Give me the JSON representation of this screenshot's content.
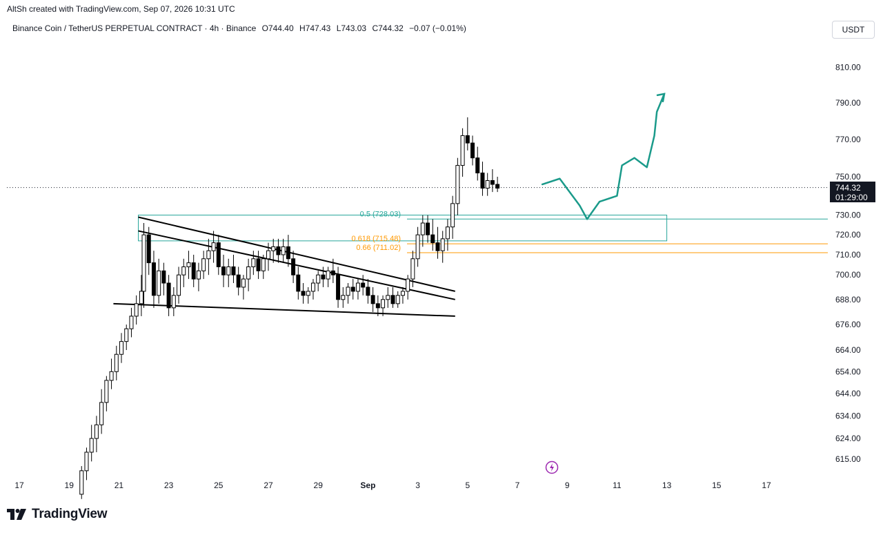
{
  "attribution": "AltSh created with TradingView.com, Sep 07, 2026 10:31 UTC",
  "header": {
    "symbol": "Binance Coin / TetherUS PERPETUAL CONTRACT · 4h · Binance",
    "open": "O744.40",
    "high": "H747.43",
    "low": "L743.03",
    "close": "C744.32",
    "change": "−0.07 (−0.01%)"
  },
  "currency_button": "USDT",
  "price_tag": {
    "price": "744.32",
    "countdown": "01:29:00"
  },
  "logo_text": "TradingView",
  "icons": {
    "logo": "tradingview-logo-icon",
    "flash": "lightning-icon"
  },
  "colors": {
    "up": "#ffffff",
    "down": "#000000",
    "green": "#26a69a",
    "orange": "#ff9800",
    "projection": "#1a9a8a",
    "text": "#131722"
  },
  "chart_data": {
    "type": "candlestick",
    "y_axis": {
      "ticks": [
        615,
        624,
        634,
        644,
        654,
        664,
        676,
        688,
        700,
        710,
        720,
        730,
        750,
        770,
        790,
        810
      ],
      "tick_labels": [
        "615.00",
        "624.00",
        "634.00",
        "644.00",
        "654.00",
        "664.00",
        "676.00",
        "688.00",
        "700.00",
        "710.00",
        "720.00",
        "730.00",
        "750.00",
        "770.00",
        "790.00",
        "810.00"
      ],
      "scale": "log"
    },
    "x_axis": {
      "tick_labels": [
        "17",
        "19",
        "21",
        "23",
        "25",
        "27",
        "29",
        "Sep",
        "3",
        "5",
        "7",
        "9",
        "11",
        "13",
        "15",
        "17"
      ]
    },
    "current_price": 744.32,
    "fib_levels": [
      {
        "label": "0.5 (728.03)",
        "value": 728.03,
        "color": "#26a69a"
      },
      {
        "label": "0.618 (715.48)",
        "value": 715.48,
        "color": "#ff9800"
      },
      {
        "label": "0.66 (711.02)",
        "value": 711.02,
        "color": "#ff9800"
      }
    ],
    "zone": {
      "high": 729,
      "low": 718,
      "start": "Aug 22",
      "end": "Sep 12"
    },
    "trendlines": [
      {
        "from": [
          "Aug 22",
          729
        ],
        "to": [
          "Sep 3.5",
          692
        ]
      },
      {
        "from": [
          "Aug 22",
          722
        ],
        "to": [
          "Sep 3.5",
          688
        ]
      },
      {
        "from": [
          "Aug 21",
          686
        ],
        "to": [
          "Sep 3.5",
          680
        ]
      }
    ],
    "projection": [
      [
        "Sep 7",
        746
      ],
      [
        "Sep 7.7",
        749
      ],
      [
        "Sep 8.5",
        735
      ],
      [
        "Sep 8.8",
        728
      ],
      [
        "Sep 9.3",
        737
      ],
      [
        "Sep 10",
        740
      ],
      [
        "Sep 10.2",
        756
      ],
      [
        "Sep 10.7",
        760
      ],
      [
        "Sep 11.2",
        755
      ],
      [
        "Sep 11.5",
        772
      ],
      [
        "Sep 11.6",
        785
      ],
      [
        "Sep 11.9",
        795
      ]
    ],
    "candles": [
      [
        19.5,
        600,
        612,
        598,
        610
      ],
      [
        19.7,
        610,
        620,
        606,
        618
      ],
      [
        19.9,
        618,
        630,
        614,
        624
      ],
      [
        20.1,
        624,
        634,
        618,
        630
      ],
      [
        20.3,
        630,
        646,
        626,
        640
      ],
      [
        20.5,
        640,
        652,
        636,
        650
      ],
      [
        20.7,
        650,
        660,
        646,
        654
      ],
      [
        20.9,
        654,
        666,
        650,
        662
      ],
      [
        21.1,
        662,
        672,
        658,
        668
      ],
      [
        21.3,
        668,
        676,
        664,
        674
      ],
      [
        21.5,
        674,
        684,
        670,
        680
      ],
      [
        21.7,
        680,
        690,
        676,
        686
      ],
      [
        21.9,
        686,
        700,
        680,
        692
      ],
      [
        22.0,
        692,
        726,
        684,
        720
      ],
      [
        22.2,
        720,
        724,
        700,
        706
      ],
      [
        22.4,
        706,
        712,
        684,
        690
      ],
      [
        22.6,
        690,
        708,
        686,
        702
      ],
      [
        22.8,
        702,
        706,
        690,
        696
      ],
      [
        23.0,
        696,
        700,
        680,
        684
      ],
      [
        23.2,
        684,
        694,
        680,
        690
      ],
      [
        23.4,
        690,
        704,
        686,
        700
      ],
      [
        23.6,
        700,
        708,
        694,
        704
      ],
      [
        23.8,
        704,
        712,
        698,
        706
      ],
      [
        24.0,
        706,
        710,
        694,
        698
      ],
      [
        24.2,
        698,
        706,
        692,
        702
      ],
      [
        24.4,
        702,
        712,
        698,
        708
      ],
      [
        24.6,
        708,
        718,
        700,
        712
      ],
      [
        24.8,
        712,
        722,
        706,
        716
      ],
      [
        25.0,
        716,
        720,
        700,
        704
      ],
      [
        25.2,
        704,
        710,
        694,
        700
      ],
      [
        25.4,
        700,
        708,
        694,
        704
      ],
      [
        25.6,
        704,
        710,
        696,
        700
      ],
      [
        25.8,
        700,
        704,
        690,
        694
      ],
      [
        26.0,
        694,
        700,
        688,
        698
      ],
      [
        26.2,
        698,
        708,
        692,
        704
      ],
      [
        26.4,
        704,
        712,
        700,
        708
      ],
      [
        26.6,
        708,
        712,
        698,
        702
      ],
      [
        26.8,
        702,
        710,
        698,
        708
      ],
      [
        27.0,
        708,
        716,
        702,
        712
      ],
      [
        27.2,
        712,
        718,
        706,
        714
      ],
      [
        27.4,
        714,
        718,
        706,
        710
      ],
      [
        27.6,
        710,
        718,
        706,
        714
      ],
      [
        27.8,
        714,
        720,
        704,
        708
      ],
      [
        28.0,
        708,
        712,
        696,
        700
      ],
      [
        28.2,
        700,
        704,
        688,
        692
      ],
      [
        28.4,
        692,
        696,
        686,
        690
      ],
      [
        28.6,
        690,
        694,
        686,
        692
      ],
      [
        28.8,
        692,
        698,
        688,
        696
      ],
      [
        29.0,
        696,
        702,
        692,
        700
      ],
      [
        29.2,
        700,
        704,
        694,
        698
      ],
      [
        29.4,
        698,
        704,
        694,
        702
      ],
      [
        29.6,
        702,
        708,
        696,
        700
      ],
      [
        29.8,
        700,
        704,
        684,
        688
      ],
      [
        30.0,
        688,
        694,
        684,
        690
      ],
      [
        30.2,
        690,
        696,
        686,
        694
      ],
      [
        30.4,
        694,
        698,
        688,
        692
      ],
      [
        30.6,
        692,
        698,
        688,
        696
      ],
      [
        30.8,
        696,
        700,
        690,
        694
      ],
      [
        31.0,
        694,
        698,
        686,
        690
      ],
      [
        31.2,
        690,
        694,
        682,
        686
      ],
      [
        31.4,
        686,
        690,
        680,
        684
      ],
      [
        31.6,
        684,
        690,
        680,
        688
      ],
      [
        31.8,
        688,
        694,
        684,
        690
      ],
      [
        32.0,
        690,
        694,
        684,
        686
      ],
      [
        32.2,
        686,
        692,
        684,
        690
      ],
      [
        32.4,
        690,
        694,
        686,
        692
      ],
      [
        32.6,
        692,
        700,
        688,
        698
      ],
      [
        32.8,
        698,
        712,
        694,
        708
      ],
      [
        33.0,
        708,
        724,
        704,
        720
      ],
      [
        33.2,
        720,
        730,
        714,
        726
      ],
      [
        33.4,
        726,
        730,
        716,
        720
      ],
      [
        33.6,
        720,
        728,
        712,
        716
      ],
      [
        33.8,
        716,
        724,
        708,
        712
      ],
      [
        34.0,
        712,
        722,
        706,
        718
      ],
      [
        34.2,
        718,
        728,
        712,
        724
      ],
      [
        34.4,
        724,
        740,
        718,
        736
      ],
      [
        34.6,
        736,
        760,
        730,
        756
      ],
      [
        34.8,
        756,
        776,
        750,
        772
      ],
      [
        35.0,
        772,
        782,
        764,
        768
      ],
      [
        35.2,
        768,
        772,
        756,
        760
      ],
      [
        35.4,
        760,
        766,
        748,
        752
      ],
      [
        35.6,
        752,
        758,
        740,
        744
      ],
      [
        35.8,
        744,
        752,
        740,
        748
      ],
      [
        36.0,
        748,
        754,
        742,
        746
      ],
      [
        36.2,
        746,
        750,
        742,
        744
      ]
    ]
  }
}
